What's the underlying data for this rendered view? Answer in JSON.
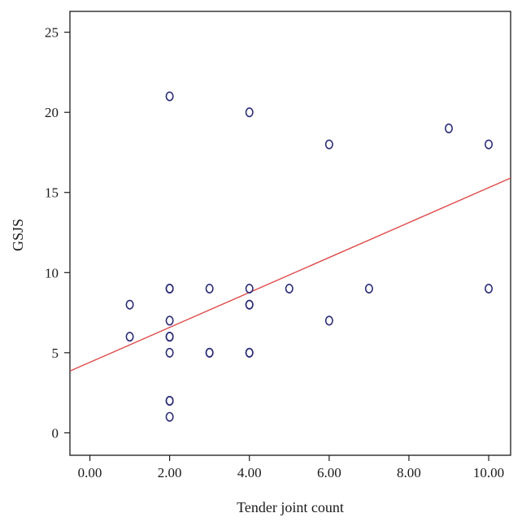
{
  "chart_data": {
    "type": "scatter",
    "title": "",
    "xlabel": "Tender joint count",
    "ylabel": "GSJS",
    "xlim": [
      -0.5,
      10.55
    ],
    "ylim": [
      -1.4,
      26.3
    ],
    "x_ticks": [
      0,
      2,
      4,
      6,
      8,
      10
    ],
    "x_tick_labels": [
      "0.00",
      "2.00",
      "4.00",
      "6.00",
      "8.00",
      "10.00"
    ],
    "y_ticks": [
      0,
      5,
      10,
      15,
      20,
      25
    ],
    "y_tick_labels": [
      "0",
      "5",
      "10",
      "15",
      "20",
      "25"
    ],
    "grid": false,
    "points": [
      {
        "x": 1,
        "y": 8
      },
      {
        "x": 1,
        "y": 6
      },
      {
        "x": 2,
        "y": 21
      },
      {
        "x": 2,
        "y": 9
      },
      {
        "x": 2,
        "y": 9
      },
      {
        "x": 2,
        "y": 7
      },
      {
        "x": 2,
        "y": 6
      },
      {
        "x": 2,
        "y": 6
      },
      {
        "x": 2,
        "y": 5
      },
      {
        "x": 2,
        "y": 2
      },
      {
        "x": 2,
        "y": 2
      },
      {
        "x": 2,
        "y": 1
      },
      {
        "x": 3,
        "y": 9
      },
      {
        "x": 3,
        "y": 5
      },
      {
        "x": 3,
        "y": 5
      },
      {
        "x": 4,
        "y": 20
      },
      {
        "x": 4,
        "y": 9
      },
      {
        "x": 4,
        "y": 8
      },
      {
        "x": 4,
        "y": 8
      },
      {
        "x": 4,
        "y": 5
      },
      {
        "x": 4,
        "y": 5
      },
      {
        "x": 5,
        "y": 9
      },
      {
        "x": 6,
        "y": 18
      },
      {
        "x": 6,
        "y": 7
      },
      {
        "x": 7,
        "y": 9
      },
      {
        "x": 9,
        "y": 19
      },
      {
        "x": 10,
        "y": 18
      },
      {
        "x": 10,
        "y": 9
      }
    ],
    "fit_line": {
      "intercept": 4.4,
      "slope": 1.09
    },
    "colors": {
      "points": "#2b2b7a",
      "fit_line": "#e04a4a",
      "axes": "#1a1a1a"
    }
  }
}
